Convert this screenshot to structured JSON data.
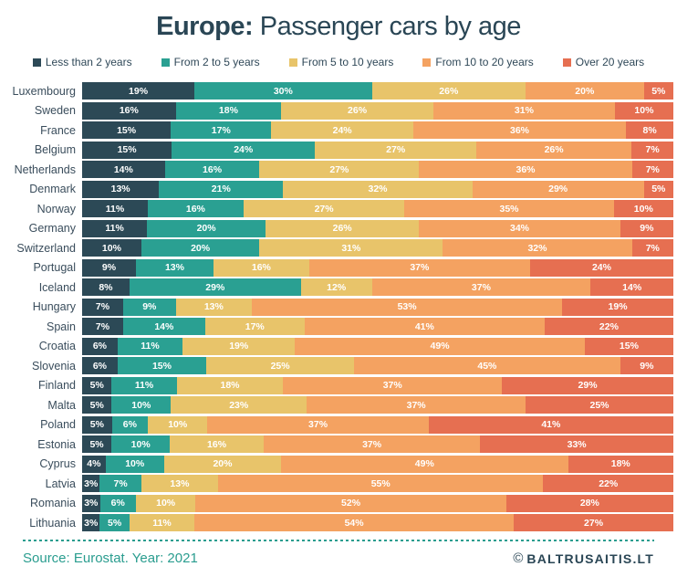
{
  "title": {
    "bold": "Europe:",
    "rest": " Passenger cars by age"
  },
  "legend": [
    {
      "label": "Less than 2 years",
      "color": "#2c4956"
    },
    {
      "label": "From 2 to 5 years",
      "color": "#2aa092"
    },
    {
      "label": "From 5 to 10 years",
      "color": "#e8c46a"
    },
    {
      "label": "From 10 to 20 years",
      "color": "#f4a261"
    },
    {
      "label": "Over 20 years",
      "color": "#e66f51"
    }
  ],
  "footer": {
    "source": "Source: Eurostat. Year: 2021",
    "credit_symbol": "©",
    "credit_name": "BALTRUSAITIS.LT"
  },
  "chart_data": {
    "type": "bar",
    "orientation": "horizontal",
    "stacked": true,
    "unit": "%",
    "title": "Europe: Passenger cars by age",
    "xlim": [
      0,
      100
    ],
    "grid": false,
    "legend_position": "top",
    "categories": [
      "Luxembourg",
      "Sweden",
      "France",
      "Belgium",
      "Netherlands",
      "Denmark",
      "Norway",
      "Germany",
      "Switzerland",
      "Portugal",
      "Iceland",
      "Hungary",
      "Spain",
      "Croatia",
      "Slovenia",
      "Finland",
      "Malta",
      "Poland",
      "Estonia",
      "Cyprus",
      "Latvia",
      "Romania",
      "Lithuania"
    ],
    "series": [
      {
        "name": "Less than 2 years",
        "color": "#2c4956",
        "values": [
          19,
          16,
          15,
          15,
          14,
          13,
          11,
          11,
          10,
          9,
          8,
          7,
          7,
          6,
          6,
          5,
          5,
          5,
          5,
          4,
          3,
          3,
          3
        ]
      },
      {
        "name": "From 2 to 5 years",
        "color": "#2aa092",
        "values": [
          30,
          18,
          17,
          24,
          16,
          21,
          16,
          20,
          20,
          13,
          29,
          9,
          14,
          11,
          15,
          11,
          10,
          6,
          10,
          10,
          7,
          6,
          5
        ]
      },
      {
        "name": "From 5 to 10 years",
        "color": "#e8c46a",
        "values": [
          26,
          26,
          24,
          27,
          27,
          32,
          27,
          26,
          31,
          16,
          12,
          13,
          17,
          19,
          25,
          18,
          23,
          10,
          16,
          20,
          13,
          10,
          11
        ]
      },
      {
        "name": "From 10 to 20 years",
        "color": "#f4a261",
        "values": [
          20,
          31,
          36,
          26,
          36,
          29,
          35,
          34,
          32,
          37,
          37,
          53,
          41,
          49,
          45,
          37,
          37,
          37,
          37,
          49,
          55,
          52,
          54
        ]
      },
      {
        "name": "Over 20 years",
        "color": "#e66f51",
        "values": [
          5,
          10,
          8,
          7,
          7,
          5,
          10,
          9,
          7,
          24,
          14,
          19,
          22,
          15,
          9,
          29,
          25,
          41,
          33,
          18,
          22,
          28,
          27
        ]
      }
    ]
  }
}
